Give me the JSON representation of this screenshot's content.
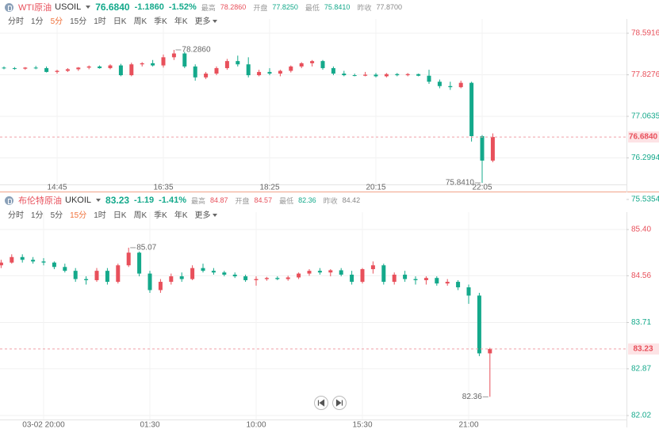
{
  "chart_data": [
    {
      "type": "candlestick",
      "name": "WTI原油",
      "symbol": "USOIL",
      "price": "76.6840",
      "change": "-1.1860",
      "change_pct": "-1.52%",
      "price_color": "#14a98b",
      "stats": [
        {
          "label": "最高",
          "value": "78.2860",
          "color": "#e8505b"
        },
        {
          "label": "开盘",
          "value": "77.8250",
          "color": "#14a98b"
        },
        {
          "label": "最低",
          "value": "75.8410",
          "color": "#14a98b"
        },
        {
          "label": "昨收",
          "value": "77.8700",
          "color": "#888888"
        }
      ],
      "tabs": [
        "分时",
        "1分",
        "5分",
        "15分",
        "1时",
        "日K",
        "周K",
        "季K",
        "年K",
        "更多"
      ],
      "active_tab": 2,
      "categories": [
        null,
        null,
        null,
        null,
        null,
        "14:45",
        null,
        null,
        null,
        null,
        null,
        null,
        null,
        null,
        null,
        "16:35",
        null,
        null,
        null,
        null,
        null,
        null,
        null,
        null,
        null,
        "18:25",
        null,
        null,
        null,
        null,
        null,
        null,
        null,
        null,
        null,
        "20:15",
        null,
        null,
        null,
        null,
        null,
        null,
        null,
        null,
        null,
        "22:05",
        null
      ],
      "open": [
        77.96,
        77.95,
        77.94,
        77.96,
        77.95,
        77.88,
        77.9,
        77.93,
        77.96,
        77.98,
        77.95,
        78.0,
        77.82,
        78.02,
        78.04,
        78.0,
        78.15,
        78.22,
        77.98,
        77.78,
        77.85,
        77.95,
        78.08,
        78.02,
        77.82,
        77.88,
        77.85,
        77.9,
        77.98,
        78.04,
        78.08,
        77.95,
        77.85,
        77.82,
        77.81,
        77.83,
        77.8,
        77.84,
        77.82,
        77.84,
        77.81,
        77.7,
        77.62,
        77.6,
        77.68,
        76.7,
        76.25
      ],
      "high": [
        77.98,
        77.97,
        77.97,
        77.99,
        77.98,
        77.92,
        77.95,
        77.97,
        78.0,
        78.0,
        78.02,
        78.03,
        78.05,
        78.06,
        78.1,
        78.2,
        78.286,
        78.25,
        78.02,
        77.88,
        77.98,
        78.12,
        78.18,
        78.15,
        77.92,
        77.95,
        77.92,
        78.0,
        78.06,
        78.1,
        78.1,
        77.98,
        77.9,
        77.85,
        77.88,
        77.86,
        77.86,
        77.86,
        77.86,
        77.85,
        77.92,
        77.74,
        77.7,
        77.72,
        77.7,
        76.72,
        76.75
      ],
      "low": [
        77.93,
        77.92,
        77.92,
        77.93,
        77.87,
        77.85,
        77.88,
        77.9,
        77.93,
        77.94,
        77.93,
        77.8,
        77.8,
        77.98,
        77.98,
        77.96,
        78.1,
        77.95,
        77.72,
        77.75,
        77.82,
        77.92,
        77.98,
        77.78,
        77.8,
        77.82,
        77.8,
        77.87,
        77.95,
        77.98,
        77.92,
        77.82,
        77.8,
        77.8,
        77.8,
        77.78,
        77.78,
        77.8,
        77.8,
        77.8,
        77.66,
        77.58,
        77.55,
        77.58,
        76.6,
        75.841,
        76.22
      ],
      "close": [
        77.95,
        77.94,
        77.96,
        77.95,
        77.88,
        77.9,
        77.93,
        77.96,
        77.98,
        77.95,
        78.0,
        77.82,
        78.02,
        78.04,
        78.0,
        78.15,
        78.22,
        77.98,
        77.78,
        77.85,
        77.95,
        78.08,
        78.02,
        77.82,
        77.88,
        77.85,
        77.9,
        77.98,
        78.04,
        78.08,
        77.95,
        77.85,
        77.82,
        77.81,
        77.83,
        77.8,
        77.84,
        77.82,
        77.84,
        77.81,
        77.7,
        77.62,
        77.6,
        77.68,
        76.7,
        76.25,
        76.684
      ],
      "up_color": "#e8505b",
      "down_color": "#14a98b",
      "ylim": [
        75.5354,
        78.5916
      ],
      "yticks": [
        78.5916,
        77.8276,
        77.0635,
        76.2994,
        75.5354
      ],
      "ytick_colors": [
        "#e8505b",
        "#e8505b",
        "#14a98b",
        "#14a98b",
        "#14a98b"
      ],
      "last_price": {
        "value": 76.684,
        "label": "76.6840"
      },
      "high_label": {
        "value": 78.286,
        "label": "78.2860"
      },
      "low_label": {
        "value": 75.841,
        "label": "75.8410"
      }
    },
    {
      "type": "candlestick",
      "name": "布伦特原油",
      "symbol": "UKOIL",
      "price": "83.23",
      "change": "-1.19",
      "change_pct": "-1.41%",
      "price_color": "#14a98b",
      "stats": [
        {
          "label": "最高",
          "value": "84.87",
          "color": "#e8505b"
        },
        {
          "label": "开盘",
          "value": "84.57",
          "color": "#e8505b"
        },
        {
          "label": "最低",
          "value": "82.36",
          "color": "#14a98b"
        },
        {
          "label": "昨收",
          "value": "84.42",
          "color": "#888888"
        }
      ],
      "tabs": [
        "分时",
        "1分",
        "5分",
        "15分",
        "1时",
        "日K",
        "周K",
        "季K",
        "年K",
        "更多"
      ],
      "active_tab": 3,
      "categories": [
        null,
        null,
        null,
        null,
        "03-02 20:00",
        null,
        null,
        null,
        null,
        null,
        null,
        null,
        null,
        null,
        "01:30",
        null,
        null,
        null,
        null,
        null,
        null,
        null,
        null,
        null,
        "10:00",
        null,
        null,
        null,
        null,
        null,
        null,
        null,
        null,
        null,
        "15:30",
        null,
        null,
        null,
        null,
        null,
        null,
        null,
        null,
        null,
        "21:00",
        null,
        null
      ],
      "open": [
        84.75,
        84.8,
        84.9,
        84.85,
        84.82,
        84.8,
        84.72,
        84.65,
        84.5,
        84.48,
        84.65,
        84.45,
        84.75,
        84.98,
        84.6,
        84.3,
        84.45,
        84.55,
        84.5,
        84.7,
        84.65,
        84.62,
        84.58,
        84.55,
        84.48,
        84.5,
        84.52,
        84.5,
        84.53,
        84.6,
        84.65,
        84.62,
        84.66,
        84.58,
        84.45,
        84.68,
        84.75,
        84.45,
        84.58,
        84.5,
        84.48,
        84.52,
        84.42,
        84.45,
        84.35,
        84.2,
        83.15
      ],
      "high": [
        84.85,
        84.95,
        84.95,
        84.9,
        84.88,
        84.82,
        84.78,
        84.7,
        84.55,
        84.7,
        84.7,
        84.78,
        85.07,
        85.0,
        84.65,
        84.5,
        84.6,
        84.62,
        84.75,
        84.78,
        84.7,
        84.65,
        84.62,
        84.58,
        84.55,
        84.54,
        84.55,
        84.56,
        84.62,
        84.68,
        84.7,
        84.68,
        84.7,
        84.65,
        84.7,
        84.82,
        84.78,
        84.62,
        84.65,
        84.55,
        84.55,
        84.55,
        84.5,
        84.48,
        84.4,
        84.25,
        83.25
      ],
      "low": [
        84.7,
        84.78,
        84.8,
        84.78,
        84.75,
        84.68,
        84.62,
        84.45,
        84.4,
        84.45,
        84.4,
        84.42,
        84.72,
        84.55,
        84.25,
        84.25,
        84.4,
        84.45,
        84.48,
        84.62,
        84.58,
        84.55,
        84.52,
        84.45,
        84.38,
        84.47,
        84.48,
        84.47,
        84.5,
        84.56,
        84.58,
        84.55,
        84.55,
        84.4,
        84.42,
        84.6,
        84.4,
        84.4,
        84.45,
        84.4,
        84.4,
        84.38,
        84.38,
        84.3,
        84.05,
        83.1,
        82.36
      ],
      "close": [
        84.8,
        84.9,
        84.85,
        84.82,
        84.8,
        84.72,
        84.65,
        84.5,
        84.48,
        84.65,
        84.45,
        84.75,
        84.98,
        84.6,
        84.3,
        84.45,
        84.55,
        84.5,
        84.7,
        84.65,
        84.62,
        84.58,
        84.55,
        84.48,
        84.5,
        84.52,
        84.5,
        84.53,
        84.6,
        84.65,
        84.62,
        84.66,
        84.58,
        84.45,
        84.68,
        84.75,
        84.45,
        84.58,
        84.5,
        84.48,
        84.52,
        84.42,
        84.45,
        84.35,
        84.2,
        83.15,
        83.23
      ],
      "up_color": "#e8505b",
      "down_color": "#14a98b",
      "ylim": [
        82.02,
        85.4
      ],
      "yticks": [
        {
          "value": 85.4,
          "label": "85.40"
        },
        84.56,
        83.71,
        82.87,
        82.02
      ],
      "ytick_colors": [
        "#e8505b",
        "#e8505b",
        "#14a98b",
        "#14a98b",
        "#14a98b"
      ],
      "last_price": 83.23,
      "high_label": 85.07,
      "low_label": 82.36
    }
  ]
}
